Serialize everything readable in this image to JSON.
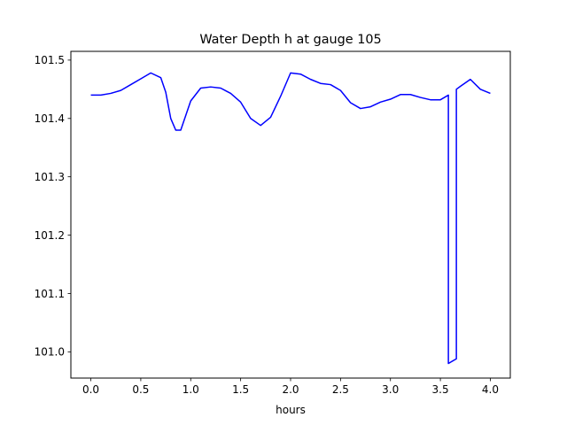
{
  "chart_data": {
    "type": "line",
    "title": "Water Depth h at gauge 105",
    "xlabel": "hours",
    "ylabel": "",
    "xlim": [
      -0.2,
      4.2
    ],
    "ylim": [
      100.955,
      101.515
    ],
    "xticks": [
      0.0,
      0.5,
      1.0,
      1.5,
      2.0,
      2.5,
      3.0,
      3.5,
      4.0
    ],
    "xtick_labels": [
      "0.0",
      "0.5",
      "1.0",
      "1.5",
      "2.0",
      "2.5",
      "3.0",
      "3.5",
      "4.0"
    ],
    "yticks": [
      101.0,
      101.1,
      101.2,
      101.3,
      101.4,
      101.5
    ],
    "ytick_labels": [
      "101.0",
      "101.1",
      "101.2",
      "101.3",
      "101.4",
      "101.5"
    ],
    "grid": false,
    "legend": false,
    "series": [
      {
        "color": "#0000ff",
        "x": [
          0.0,
          0.1,
          0.2,
          0.3,
          0.4,
          0.5,
          0.6,
          0.7,
          0.75,
          0.8,
          0.85,
          0.9,
          0.95,
          1.0,
          1.1,
          1.2,
          1.3,
          1.4,
          1.5,
          1.6,
          1.7,
          1.8,
          1.9,
          2.0,
          2.1,
          2.2,
          2.3,
          2.4,
          2.5,
          2.6,
          2.7,
          2.8,
          2.9,
          3.0,
          3.1,
          3.2,
          3.3,
          3.4,
          3.5,
          3.58,
          3.58,
          3.66,
          3.66,
          3.7,
          3.8,
          3.9,
          4.0
        ],
        "y": [
          101.44,
          101.44,
          101.443,
          101.448,
          101.458,
          101.468,
          101.478,
          101.47,
          101.445,
          101.4,
          101.38,
          101.38,
          101.405,
          101.43,
          101.452,
          101.454,
          101.452,
          101.443,
          101.428,
          101.4,
          101.388,
          101.402,
          101.438,
          101.478,
          101.476,
          101.467,
          101.46,
          101.458,
          101.448,
          101.427,
          101.417,
          101.42,
          101.428,
          101.433,
          101.441,
          101.441,
          101.436,
          101.432,
          101.432,
          101.44,
          100.98,
          100.988,
          101.45,
          101.455,
          101.467,
          101.45,
          101.443
        ]
      }
    ]
  }
}
